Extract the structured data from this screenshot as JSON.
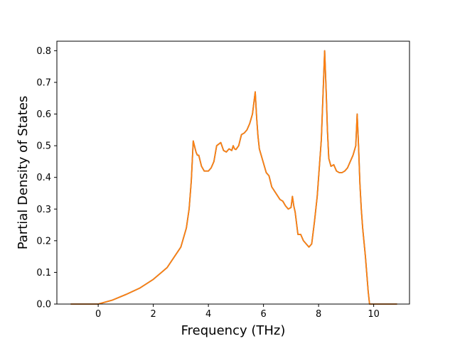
{
  "chart_data": {
    "type": "line",
    "title": "",
    "xlabel": "Frequency (THz)",
    "ylabel": "Partial Density of States",
    "xlim": [
      -1.5,
      11.3
    ],
    "ylim": [
      0.0,
      0.83
    ],
    "xticks": [
      0,
      2,
      4,
      6,
      8,
      10
    ],
    "yticks": [
      0.0,
      0.1,
      0.2,
      0.3,
      0.4,
      0.5,
      0.6,
      0.7,
      0.8
    ],
    "xtick_labels": [
      "0",
      "2",
      "4",
      "6",
      "8",
      "10"
    ],
    "ytick_labels": [
      "0.0",
      "0.1",
      "0.2",
      "0.3",
      "0.4",
      "0.5",
      "0.6",
      "0.7",
      "0.8"
    ],
    "grid": false,
    "legend": false,
    "series": [
      {
        "color": "#1f77b4",
        "x": [
          -1.0,
          0.0,
          0.5,
          1.0,
          1.5,
          2.0,
          2.5,
          3.0,
          3.2,
          3.3,
          3.38,
          3.45,
          3.55,
          3.6,
          3.65,
          3.75,
          3.85,
          4.0,
          4.1,
          4.2,
          4.3,
          4.45,
          4.55,
          4.65,
          4.75,
          4.85,
          4.9,
          4.95,
          5.0,
          5.1,
          5.2,
          5.3,
          5.4,
          5.5,
          5.6,
          5.7,
          5.75,
          5.8,
          5.85,
          5.95,
          6.1,
          6.2,
          6.3,
          6.45,
          6.6,
          6.7,
          6.8,
          6.9,
          7.0,
          7.05,
          7.1,
          7.15,
          7.25,
          7.35,
          7.45,
          7.55,
          7.65,
          7.75,
          7.85,
          7.95,
          8.1,
          8.22,
          8.28,
          8.32,
          8.37,
          8.45,
          8.55,
          8.65,
          8.75,
          8.85,
          8.95,
          9.05,
          9.15,
          9.25,
          9.35,
          9.4,
          9.45,
          9.5,
          9.55,
          9.6,
          9.7,
          9.8,
          9.85,
          9.9,
          10.0,
          10.85
        ],
        "y": [
          0.0,
          0.0,
          0.012,
          0.03,
          0.05,
          0.078,
          0.115,
          0.18,
          0.24,
          0.3,
          0.39,
          0.515,
          0.48,
          0.47,
          0.47,
          0.435,
          0.42,
          0.42,
          0.43,
          0.45,
          0.5,
          0.51,
          0.485,
          0.48,
          0.49,
          0.485,
          0.5,
          0.49,
          0.488,
          0.5,
          0.535,
          0.54,
          0.55,
          0.57,
          0.6,
          0.67,
          0.59,
          0.53,
          0.49,
          0.46,
          0.415,
          0.405,
          0.37,
          0.35,
          0.33,
          0.325,
          0.31,
          0.3,
          0.305,
          0.34,
          0.31,
          0.29,
          0.22,
          0.22,
          0.2,
          0.19,
          0.18,
          0.19,
          0.26,
          0.34,
          0.52,
          0.8,
          0.66,
          0.55,
          0.46,
          0.435,
          0.44,
          0.42,
          0.415,
          0.415,
          0.42,
          0.43,
          0.45,
          0.47,
          0.5,
          0.6,
          0.5,
          0.38,
          0.3,
          0.24,
          0.15,
          0.04,
          0.0,
          0.0,
          0.0,
          0.0
        ]
      },
      {
        "color": "#ff7f0e",
        "x": [
          -1.0,
          0.0,
          0.5,
          1.0,
          1.5,
          2.0,
          2.5,
          3.0,
          3.2,
          3.3,
          3.38,
          3.45,
          3.55,
          3.6,
          3.65,
          3.75,
          3.85,
          4.0,
          4.1,
          4.2,
          4.3,
          4.45,
          4.55,
          4.65,
          4.75,
          4.85,
          4.9,
          4.95,
          5.0,
          5.1,
          5.2,
          5.3,
          5.4,
          5.5,
          5.6,
          5.7,
          5.75,
          5.8,
          5.85,
          5.95,
          6.1,
          6.2,
          6.3,
          6.45,
          6.6,
          6.7,
          6.8,
          6.9,
          7.0,
          7.05,
          7.1,
          7.15,
          7.25,
          7.35,
          7.45,
          7.55,
          7.65,
          7.75,
          7.85,
          7.95,
          8.1,
          8.22,
          8.28,
          8.32,
          8.37,
          8.45,
          8.55,
          8.65,
          8.75,
          8.85,
          8.95,
          9.05,
          9.15,
          9.25,
          9.35,
          9.4,
          9.45,
          9.5,
          9.55,
          9.6,
          9.7,
          9.8,
          9.85,
          9.9,
          10.0,
          10.85
        ],
        "y": [
          0.0,
          0.0,
          0.012,
          0.03,
          0.05,
          0.078,
          0.115,
          0.18,
          0.24,
          0.3,
          0.39,
          0.515,
          0.48,
          0.47,
          0.47,
          0.435,
          0.42,
          0.42,
          0.43,
          0.45,
          0.5,
          0.51,
          0.485,
          0.48,
          0.49,
          0.485,
          0.5,
          0.49,
          0.488,
          0.5,
          0.535,
          0.54,
          0.55,
          0.57,
          0.6,
          0.67,
          0.59,
          0.53,
          0.49,
          0.46,
          0.415,
          0.405,
          0.37,
          0.35,
          0.33,
          0.325,
          0.31,
          0.3,
          0.305,
          0.34,
          0.31,
          0.29,
          0.22,
          0.22,
          0.2,
          0.19,
          0.18,
          0.19,
          0.26,
          0.34,
          0.52,
          0.8,
          0.66,
          0.55,
          0.46,
          0.435,
          0.44,
          0.42,
          0.415,
          0.415,
          0.42,
          0.43,
          0.45,
          0.47,
          0.5,
          0.6,
          0.5,
          0.38,
          0.3,
          0.24,
          0.15,
          0.04,
          0.0,
          0.0,
          0.0,
          0.0
        ]
      }
    ]
  }
}
